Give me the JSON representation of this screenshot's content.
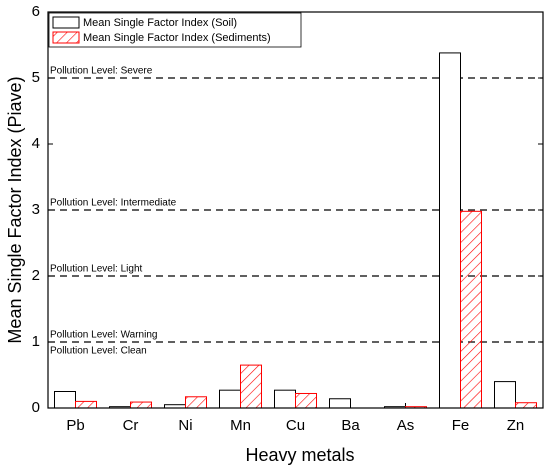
{
  "chart_data": {
    "type": "bar",
    "x_label": "Heavy metals",
    "y_label": "Mean Single Factor Index (Piave)",
    "categories": [
      "Pb",
      "Cr",
      "Ni",
      "Mn",
      "Cu",
      "Ba",
      "As",
      "Fe",
      "Zn"
    ],
    "series": [
      {
        "name": "Mean Single Factor Index (Soil)",
        "color": "#000000",
        "values": [
          0.25,
          0.02,
          0.05,
          0.27,
          0.27,
          0.14,
          0.02,
          5.38,
          0.4
        ]
      },
      {
        "name": "Mean Single Factor Index (Sediments)",
        "color": "#ff0000",
        "hatch": "/",
        "values": [
          0.1,
          0.09,
          0.17,
          0.65,
          0.22,
          null,
          0.02,
          2.98,
          0.08
        ]
      }
    ],
    "reference_lines": [
      {
        "value": 5,
        "label": "Pollution Level: Severe"
      },
      {
        "value": 3,
        "label": "Pollution Level: Intermediate"
      },
      {
        "value": 2,
        "label": "Pollution Level: Light"
      },
      {
        "value": 1,
        "label": "Pollution Level: Warning"
      }
    ],
    "annotations": [
      "Pollution Level: Clean"
    ],
    "ylim": [
      0,
      6
    ],
    "yticks": [
      0,
      1,
      2,
      3,
      4,
      5,
      6
    ],
    "legend": "upper left"
  }
}
